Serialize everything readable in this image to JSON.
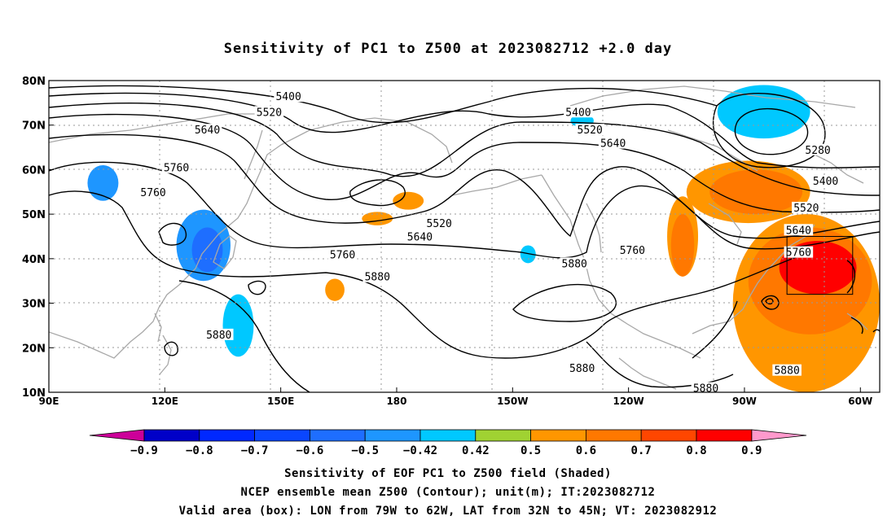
{
  "title": "Sensitivity of PC1 to Z500 at 2023082712 +2.0 day",
  "chart_data": {
    "type": "heatmap",
    "lat_ticks": [
      "80N",
      "70N",
      "60N",
      "50N",
      "40N",
      "30N",
      "20N",
      "10N"
    ],
    "lon_ticks": [
      "90E",
      "120E",
      "150E",
      "180",
      "150W",
      "120W",
      "90W",
      "60W"
    ],
    "lon_range": [
      90,
      305
    ],
    "lat_range": [
      10,
      80
    ],
    "contour_labels": [
      {
        "text": "5400",
        "lon": 152,
        "lat": 76.5
      },
      {
        "text": "5520",
        "lon": 147,
        "lat": 73
      },
      {
        "text": "5640",
        "lon": 131,
        "lat": 69
      },
      {
        "text": "5760",
        "lon": 123,
        "lat": 60.5
      },
      {
        "text": "5760",
        "lon": 117,
        "lat": 55
      },
      {
        "text": "5880",
        "lon": 134,
        "lat": 23
      },
      {
        "text": "5400",
        "lon": 227,
        "lat": 73
      },
      {
        "text": "5520",
        "lon": 230,
        "lat": 69
      },
      {
        "text": "5640",
        "lon": 236,
        "lat": 66
      },
      {
        "text": "5520",
        "lon": 191,
        "lat": 48
      },
      {
        "text": "5640",
        "lon": 186,
        "lat": 45
      },
      {
        "text": "5760",
        "lon": 166,
        "lat": 41
      },
      {
        "text": "5880",
        "lon": 175,
        "lat": 36
      },
      {
        "text": "5880",
        "lon": 226,
        "lat": 39
      },
      {
        "text": "5760",
        "lon": 241,
        "lat": 42
      },
      {
        "text": "5880",
        "lon": 228,
        "lat": 15.5
      },
      {
        "text": "5880",
        "lon": 260,
        "lat": 11
      },
      {
        "text": "5880",
        "lon": 281,
        "lat": 15
      },
      {
        "text": "5280",
        "lon": 289,
        "lat": 64.5
      },
      {
        "text": "5400",
        "lon": 291,
        "lat": 57.5
      },
      {
        "text": "5520",
        "lon": 286,
        "lat": 51.5
      },
      {
        "text": "5640",
        "lon": 284,
        "lat": 46.5
      },
      {
        "text": "5760",
        "lon": 284,
        "lat": 41.5
      }
    ],
    "valid_box": {
      "lon": [
        281,
        298
      ],
      "lat": [
        32,
        45
      ]
    },
    "colorbar": {
      "labels": [
        "-0.9",
        "-0.8",
        "-0.7",
        "-0.6",
        "-0.5",
        "-0.42",
        "0.42",
        "0.5",
        "0.6",
        "0.7",
        "0.8",
        "0.9"
      ],
      "colors": [
        "#0000c8",
        "#0028ff",
        "#0a46ff",
        "#1e6eff",
        "#1e96ff",
        "#00c8ff",
        "#ffffff",
        "#a0d232",
        "#ff9600",
        "#ff7800",
        "#ff4600",
        "#ff0000"
      ],
      "low_color": "#cc0099",
      "high_color": "#ff99cc"
    },
    "shading": [
      {
        "level": 0.8,
        "lon": 289,
        "lat": 38,
        "rlon": 10,
        "rlat": 6
      },
      {
        "level": 0.6,
        "lon": 287,
        "lat": 35,
        "rlon": 16,
        "rlat": 12
      },
      {
        "level": 0.5,
        "lon": 286,
        "lat": 30,
        "rlon": 19,
        "rlat": 20
      },
      {
        "level": 0.6,
        "lon": 273,
        "lat": 55,
        "rlon": 12,
        "rlat": 5
      },
      {
        "level": 0.5,
        "lon": 271,
        "lat": 55,
        "rlon": 16,
        "rlat": 7
      },
      {
        "level": 0.6,
        "lon": 254,
        "lat": 43,
        "rlon": 3,
        "rlat": 7
      },
      {
        "level": 0.5,
        "lon": 254,
        "lat": 45,
        "rlon": 4,
        "rlat": 9
      },
      {
        "level": -0.6,
        "lon": 131,
        "lat": 42,
        "rlon": 4,
        "rlat": 5
      },
      {
        "level": -0.5,
        "lon": 130,
        "lat": 43,
        "rlon": 7,
        "rlat": 8
      },
      {
        "level": -0.5,
        "lon": 104,
        "lat": 57,
        "rlon": 4,
        "rlat": 4
      },
      {
        "level": -0.42,
        "lon": 139,
        "lat": 25,
        "rlon": 4,
        "rlat": 7
      },
      {
        "level": -0.42,
        "lon": 275,
        "lat": 73,
        "rlon": 12,
        "rlat": 6
      },
      {
        "level": -0.42,
        "lon": 228,
        "lat": 71,
        "rlon": 3,
        "rlat": 1.5
      },
      {
        "level": -0.42,
        "lon": 214,
        "lat": 41,
        "rlon": 2,
        "rlat": 2
      },
      {
        "level": 0.5,
        "lon": 183,
        "lat": 53,
        "rlon": 4,
        "rlat": 2
      },
      {
        "level": 0.5,
        "lon": 175,
        "lat": 49,
        "rlon": 4,
        "rlat": 1.5
      },
      {
        "level": 0.5,
        "lon": 164,
        "lat": 33,
        "rlon": 2.5,
        "rlat": 2.5
      }
    ]
  },
  "captions": [
    "Sensitivity of EOF PC1 to Z500 field (Shaded)",
    "NCEP ensemble mean Z500 (Contour); unit(m); IT:2023082712",
    "Valid area (box): LON from 79W to 62W, LAT from 32N to 45N; VT: 2023082912"
  ]
}
